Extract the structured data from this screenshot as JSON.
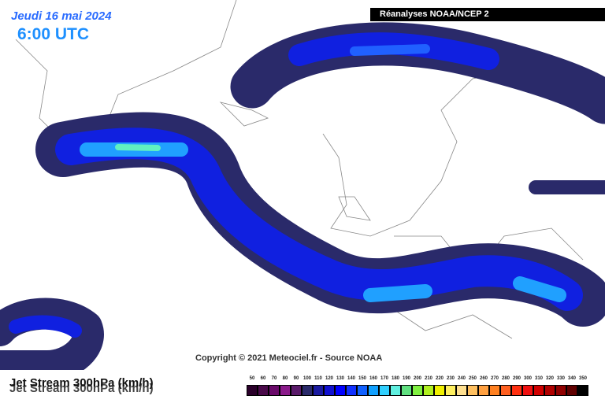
{
  "header": {
    "date": "Jeudi 16 mai 2024",
    "time": "6:00 UTC",
    "source": "Réanalyses NOAA/NCEP 2"
  },
  "copyright": "Copyright © 2021 Meteociel.fr - Source NOAA",
  "legend": {
    "title": "Jet Stream 300hPa (km/h)",
    "items": [
      {
        "label": 50,
        "color": "#2a002a"
      },
      {
        "label": 60,
        "color": "#4a0a4a"
      },
      {
        "label": 70,
        "color": "#6a0a6a"
      },
      {
        "label": 80,
        "color": "#8a1a8a"
      },
      {
        "label": 90,
        "color": "#5a1a6a"
      },
      {
        "label": 100,
        "color": "#2a2a6a"
      },
      {
        "label": 110,
        "color": "#1a1aa0"
      },
      {
        "label": 120,
        "color": "#1010d0"
      },
      {
        "label": 130,
        "color": "#0000ff"
      },
      {
        "label": 140,
        "color": "#1030ff"
      },
      {
        "label": 150,
        "color": "#1060ff"
      },
      {
        "label": 160,
        "color": "#10a0ff"
      },
      {
        "label": 170,
        "color": "#30d0ff"
      },
      {
        "label": 180,
        "color": "#60f0e0"
      },
      {
        "label": 190,
        "color": "#60e080"
      },
      {
        "label": 200,
        "color": "#80f040"
      },
      {
        "label": 210,
        "color": "#b0f020"
      },
      {
        "label": 220,
        "color": "#f0f000"
      },
      {
        "label": 230,
        "color": "#fff060"
      },
      {
        "label": 240,
        "color": "#ffe090"
      },
      {
        "label": 250,
        "color": "#ffc060"
      },
      {
        "label": 260,
        "color": "#ffa040"
      },
      {
        "label": 270,
        "color": "#ff8020"
      },
      {
        "label": 280,
        "color": "#ff6020"
      },
      {
        "label": 290,
        "color": "#ff3010"
      },
      {
        "label": 300,
        "color": "#f01010"
      },
      {
        "label": 310,
        "color": "#d00000"
      },
      {
        "label": 320,
        "color": "#b00000"
      },
      {
        "label": 330,
        "color": "#900000"
      },
      {
        "label": 340,
        "color": "#600000"
      },
      {
        "label": 350,
        "color": "#000000"
      }
    ]
  }
}
